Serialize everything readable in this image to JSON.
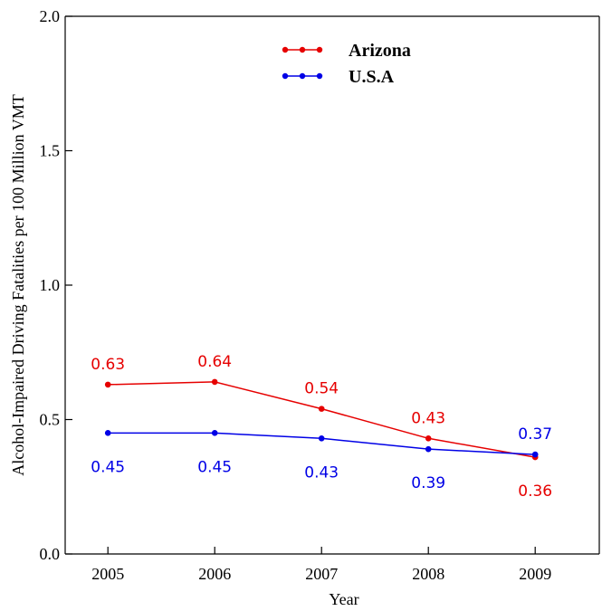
{
  "chart_data": {
    "type": "line",
    "x": [
      2005,
      2006,
      2007,
      2008,
      2009
    ],
    "series": [
      {
        "name": "Arizona",
        "color": "#e60000",
        "values": [
          0.63,
          0.64,
          0.54,
          0.43,
          0.36
        ],
        "labels": [
          "0.63",
          "0.64",
          "0.54",
          "0.43",
          "0.36"
        ]
      },
      {
        "name": "U.S.A",
        "color": "#0000e6",
        "values": [
          0.45,
          0.45,
          0.43,
          0.39,
          0.37
        ],
        "labels": [
          "0.45",
          "0.45",
          "0.43",
          "0.39",
          "0.37"
        ]
      }
    ],
    "xlabel": "Year",
    "ylabel": "Alcohol-Impaired Driving Fatalities per 100 Million VMT",
    "xlim": [
      2004.6,
      2009.6
    ],
    "ylim": [
      0.0,
      2.0
    ],
    "yticks": [
      0.0,
      0.5,
      1.0,
      1.5,
      2.0
    ],
    "ytick_labels": [
      "0.0",
      "0.5",
      "1.0",
      "1.5",
      "2.0"
    ],
    "xtick_labels": [
      "2005",
      "2006",
      "2007",
      "2008",
      "2009"
    ],
    "grid": false,
    "legend_position": "top-center"
  }
}
